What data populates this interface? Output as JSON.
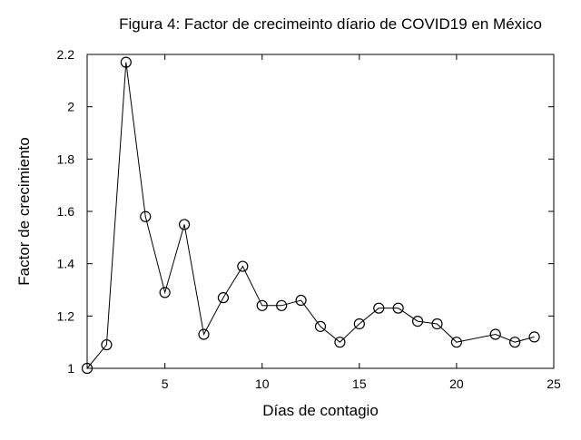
{
  "chart_data": {
    "type": "line",
    "title": "Figura 4: Factor de crecimeinto díario de COVID19 en México",
    "xlabel": "Días de contagio",
    "ylabel": "Factor de crecimiento",
    "xlim": [
      1,
      25
    ],
    "ylim": [
      1,
      2.2
    ],
    "xticks": [
      5,
      10,
      15,
      20,
      25
    ],
    "yticks": [
      1,
      1.2,
      1.4,
      1.6,
      1.8,
      2,
      2.2
    ],
    "xtick_labels": [
      "5",
      "10",
      "15",
      "20",
      "25"
    ],
    "ytick_labels": [
      "1",
      "1.2",
      "1.4",
      "1.6",
      "1.8",
      "2",
      "2.2"
    ],
    "grid": false,
    "marker": "open-circle",
    "line_color": "#000000",
    "series": [
      {
        "x": [
          1,
          2,
          3,
          4,
          5,
          6,
          7,
          8,
          9,
          10,
          11,
          12,
          13,
          14,
          15,
          16,
          17,
          18,
          19,
          20,
          22,
          23,
          24
        ],
        "y": [
          1.0,
          1.09,
          2.17,
          1.58,
          1.29,
          1.55,
          1.13,
          1.27,
          1.39,
          1.24,
          1.24,
          1.26,
          1.16,
          1.1,
          1.17,
          1.23,
          1.23,
          1.18,
          1.17,
          1.1,
          1.13,
          1.1,
          1.12
        ]
      }
    ]
  }
}
